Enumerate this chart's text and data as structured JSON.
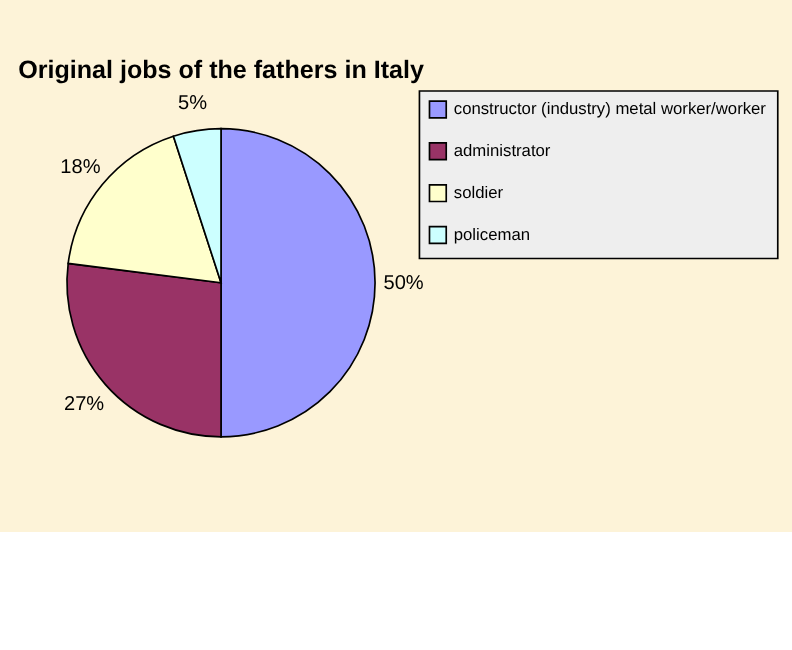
{
  "chart_data": {
    "type": "pie",
    "title": "Original jobs of the fathers in Italy",
    "categories": [
      "constructor (industry) metal worker/worker",
      "administrator",
      "soldier",
      "policeman"
    ],
    "values": [
      50,
      27,
      18,
      5
    ],
    "colors": [
      "#9999ff",
      "#993366",
      "#ffffcc",
      "#ccffff"
    ],
    "value_labels": [
      "50%",
      "27%",
      "18%",
      "5%"
    ],
    "legend": "right"
  }
}
